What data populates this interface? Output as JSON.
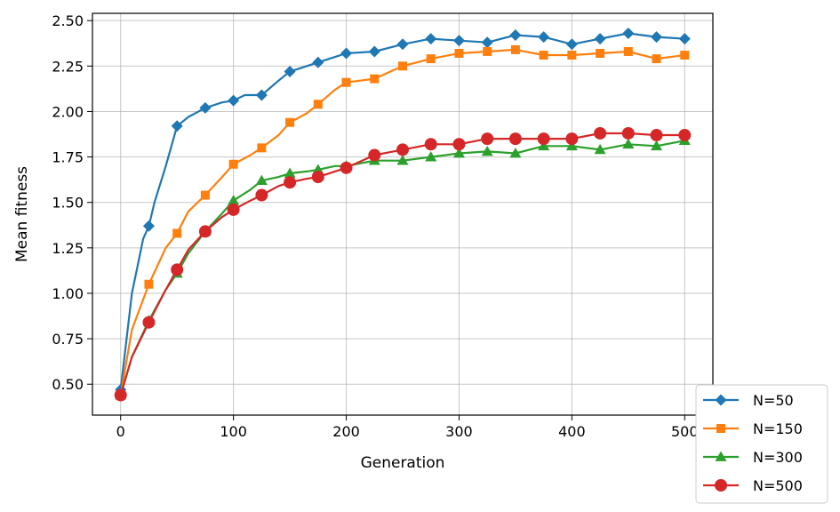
{
  "chart_data": {
    "type": "line",
    "title": "",
    "xlabel": "Generation",
    "ylabel": "Mean fitness",
    "xlim": [
      -25,
      525
    ],
    "ylim": [
      0.33,
      2.54
    ],
    "xticks": [
      0,
      100,
      200,
      300,
      400,
      500
    ],
    "xtick_labels": [
      "0",
      "100",
      "200",
      "300",
      "400",
      "500"
    ],
    "yticks": [
      0.5,
      0.75,
      1.0,
      1.25,
      1.5,
      1.75,
      2.0,
      2.25,
      2.5
    ],
    "ytick_labels": [
      "0.50",
      "0.75",
      "1.00",
      "1.25",
      "1.50",
      "1.75",
      "2.00",
      "2.25",
      "2.50"
    ],
    "grid": true,
    "legend_position": "lower-right outside",
    "series": [
      {
        "name": "N=50",
        "color": "#1f77b4",
        "marker": "diamond",
        "x": [
          0,
          10,
          20,
          25,
          30,
          40,
          50,
          60,
          75,
          90,
          100,
          110,
          125,
          140,
          150,
          160,
          175,
          190,
          200,
          225,
          250,
          275,
          300,
          325,
          350,
          375,
          400,
          425,
          450,
          475,
          500
        ],
        "y": [
          0.47,
          1.0,
          1.3,
          1.37,
          1.5,
          1.7,
          1.92,
          1.97,
          2.02,
          2.05,
          2.06,
          2.09,
          2.09,
          2.17,
          2.22,
          2.24,
          2.27,
          2.3,
          2.32,
          2.33,
          2.37,
          2.4,
          2.39,
          2.38,
          2.42,
          2.41,
          2.37,
          2.4,
          2.43,
          2.41,
          2.4
        ]
      },
      {
        "name": "N=150",
        "color": "#ff7f0e",
        "marker": "square",
        "x": [
          0,
          10,
          25,
          40,
          50,
          60,
          75,
          90,
          100,
          115,
          125,
          140,
          150,
          165,
          175,
          190,
          200,
          225,
          250,
          275,
          300,
          325,
          350,
          375,
          400,
          425,
          450,
          475,
          500
        ],
        "y": [
          0.44,
          0.8,
          1.05,
          1.25,
          1.33,
          1.45,
          1.54,
          1.64,
          1.71,
          1.76,
          1.8,
          1.87,
          1.94,
          1.99,
          2.04,
          2.12,
          2.16,
          2.18,
          2.25,
          2.29,
          2.32,
          2.33,
          2.34,
          2.31,
          2.31,
          2.32,
          2.33,
          2.29,
          2.31
        ]
      },
      {
        "name": "N=300",
        "color": "#2ca02c",
        "marker": "triangle",
        "x": [
          0,
          10,
          25,
          40,
          50,
          60,
          75,
          90,
          100,
          115,
          125,
          140,
          150,
          165,
          175,
          190,
          200,
          225,
          250,
          275,
          300,
          325,
          350,
          375,
          400,
          425,
          450,
          475,
          500
        ],
        "y": [
          0.44,
          0.65,
          0.85,
          1.02,
          1.11,
          1.22,
          1.34,
          1.44,
          1.51,
          1.57,
          1.62,
          1.64,
          1.66,
          1.67,
          1.68,
          1.7,
          1.7,
          1.73,
          1.73,
          1.75,
          1.77,
          1.78,
          1.77,
          1.81,
          1.81,
          1.79,
          1.82,
          1.81,
          1.84
        ]
      },
      {
        "name": "N=500",
        "color": "#d62728",
        "marker": "circle",
        "x": [
          0,
          10,
          25,
          40,
          50,
          60,
          75,
          90,
          100,
          115,
          125,
          140,
          150,
          165,
          175,
          190,
          200,
          225,
          250,
          275,
          300,
          325,
          350,
          375,
          400,
          425,
          450,
          475,
          500
        ],
        "y": [
          0.44,
          0.65,
          0.84,
          1.02,
          1.13,
          1.24,
          1.34,
          1.42,
          1.46,
          1.51,
          1.54,
          1.59,
          1.61,
          1.63,
          1.64,
          1.67,
          1.69,
          1.76,
          1.79,
          1.82,
          1.82,
          1.85,
          1.85,
          1.85,
          1.85,
          1.88,
          1.88,
          1.87,
          1.87
        ]
      }
    ]
  }
}
